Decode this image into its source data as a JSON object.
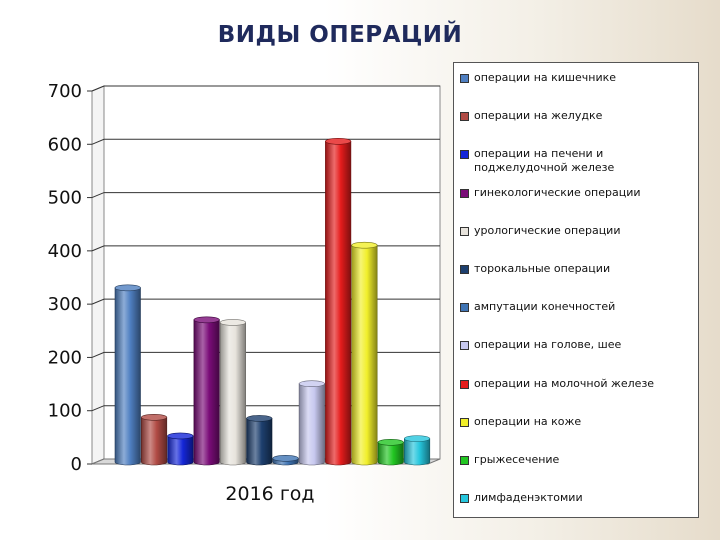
{
  "title": "ВИДЫ ОПЕРАЦИЙ",
  "chart_data": {
    "type": "bar",
    "categories": [
      "2016 год"
    ],
    "ylim": [
      0,
      700
    ],
    "yticks": [
      "0",
      "100",
      "200",
      "300",
      "400",
      "500",
      "600",
      "700"
    ],
    "grid": true,
    "legend_position": "right",
    "series": [
      {
        "name": "операции на кишечнике",
        "values": [
          325
        ],
        "color": "#4f7fc1"
      },
      {
        "name": "операции на желудке",
        "values": [
          82
        ],
        "color": "#b14b45"
      },
      {
        "name": "операции на печени и поджелудочной железе",
        "values": [
          47
        ],
        "color": "#1426d8"
      },
      {
        "name": "гинекологические операции",
        "values": [
          265
        ],
        "color": "#7a0c78"
      },
      {
        "name": "урологические операции",
        "values": [
          260
        ],
        "color": "#e7e3dc"
      },
      {
        "name": "торокальные операции",
        "values": [
          80
        ],
        "color": "#1d3f6e"
      },
      {
        "name": "ампутации конечностей",
        "values": [
          5
        ],
        "color": "#3f74b4"
      },
      {
        "name": "операции на голове, шее",
        "values": [
          145
        ],
        "color": "#c7c8ef"
      },
      {
        "name": "операции на молочной железе",
        "values": [
          600
        ],
        "color": "#e51c1c"
      },
      {
        "name": "операции на коже",
        "values": [
          405
        ],
        "color": "#f1ef2a"
      },
      {
        "name": "грыжесечение",
        "values": [
          35
        ],
        "color": "#22c622"
      },
      {
        "name": "лимфаденэктомии",
        "values": [
          42
        ],
        "color": "#26c6dd"
      }
    ]
  }
}
